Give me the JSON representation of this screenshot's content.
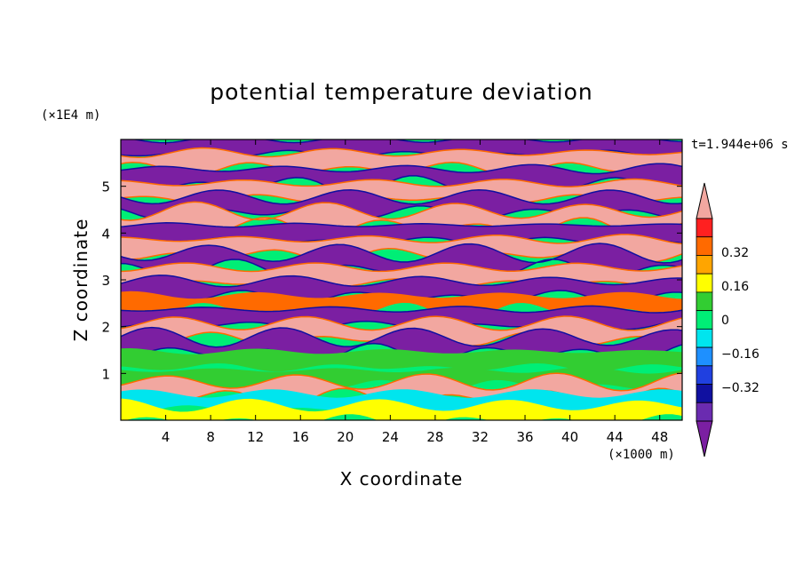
{
  "chart_data": {
    "type": "heatmap",
    "title": "potential temperature deviation",
    "xlabel": "X coordinate",
    "ylabel": "Z coordinate",
    "x_unit_label": "(×1000 m)",
    "y_unit_label": "(×1E4 m)",
    "time_label": "t=1.944e+06 s",
    "xlim": [
      0,
      50
    ],
    "ylim": [
      0,
      6
    ],
    "x_ticks": [
      "4",
      "8",
      "12",
      "16",
      "20",
      "24",
      "28",
      "32",
      "36",
      "40",
      "44",
      "48"
    ],
    "y_ticks": [
      "1",
      "2",
      "3",
      "4",
      "5"
    ],
    "colorbar": {
      "levels": [
        -0.48,
        -0.4,
        -0.32,
        -0.24,
        -0.16,
        -0.08,
        0,
        0.08,
        0.16,
        0.24,
        0.32,
        0.4,
        0.48
      ],
      "colors": [
        "#7b1fa2",
        "#6a2bb0",
        "#1010a0",
        "#2040e0",
        "#1e90ff",
        "#00e5ee",
        "#00ee76",
        "#32cd32",
        "#ffff00",
        "#ffa500",
        "#ff6a00",
        "#ff2020",
        "#f2a7a0"
      ],
      "tick_labels": [
        "0.32",
        "0.16",
        "0",
        "−0.16",
        "−0.32"
      ],
      "extend": "both"
    },
    "layers": [
      {
        "z": 5.85,
        "value": -0.5
      },
      {
        "z": 5.55,
        "value": 0.5
      },
      {
        "z": 5.2,
        "value": -0.5
      },
      {
        "z": 4.9,
        "value": 0.5
      },
      {
        "z": 4.6,
        "value": -0.5
      },
      {
        "z": 4.3,
        "value": 0.5
      },
      {
        "z": 4.0,
        "value": -0.5
      },
      {
        "z": 3.7,
        "value": 0.5
      },
      {
        "z": 3.4,
        "value": -0.5
      },
      {
        "z": 3.1,
        "value": 0.5
      },
      {
        "z": 2.8,
        "value": -0.5
      },
      {
        "z": 2.5,
        "value": 0.3
      },
      {
        "z": 2.2,
        "value": -0.5
      },
      {
        "z": 1.9,
        "value": 0.5
      },
      {
        "z": 1.6,
        "value": -0.5
      },
      {
        "z": 1.3,
        "value": 0.04
      },
      {
        "z": 0.9,
        "value": 0.04
      },
      {
        "z": 0.65,
        "value": 0.5
      },
      {
        "z": 0.4,
        "value": -0.1
      },
      {
        "z": 0.15,
        "value": 0.1
      }
    ]
  }
}
